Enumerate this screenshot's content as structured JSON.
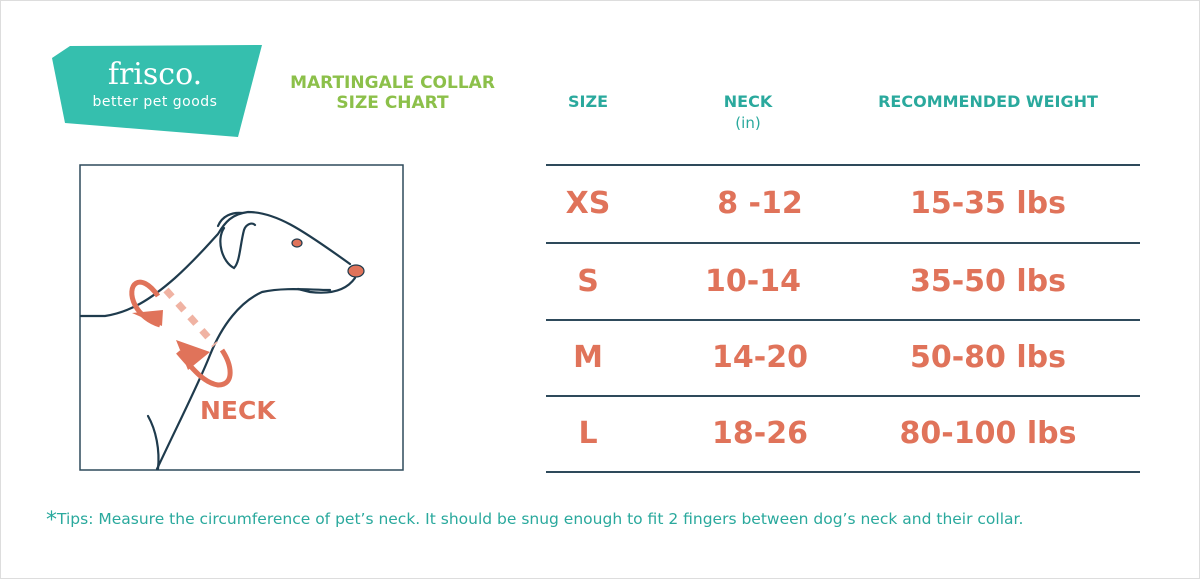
{
  "brand": {
    "name": "frisco.",
    "tagline": "better pet goods",
    "color": "#35bfae"
  },
  "title": {
    "line1": "MARTINGALE COLLAR",
    "line2": "SIZE CHART",
    "color": "#8cc04a"
  },
  "illustration": {
    "label": "NECK",
    "accent": "#e0735a"
  },
  "table": {
    "headers": [
      {
        "label": "SIZE"
      },
      {
        "label": "NECK",
        "sub": "(in)"
      },
      {
        "label": "RECOMMENDED WEIGHT"
      }
    ],
    "rows": [
      {
        "size": "XS",
        "neck": "8 -12",
        "weight": "15-35 lbs"
      },
      {
        "size": "S",
        "neck": "10-14",
        "weight": "35-50 lbs"
      },
      {
        "size": "M",
        "neck": "14-20",
        "weight": "50-80 lbs"
      },
      {
        "size": "L",
        "neck": "18-26",
        "weight": "80-100 lbs"
      }
    ]
  },
  "tips": {
    "asterisk": "*",
    "text": "Tips: Measure the circumference of pet’s neck. It should be snug enough to fit 2 fingers between dog’s neck and their collar."
  }
}
